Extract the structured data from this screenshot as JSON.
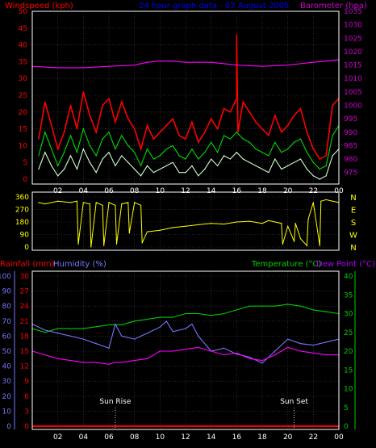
{
  "colors": {
    "background": "#000000",
    "frame": "#ffffff",
    "grid": "#444444",
    "windspeed_axis": "#ff0000",
    "barometer_axis": "#cc00cc",
    "title": "#0000ff",
    "gust": "#ff0000",
    "average": "#00dd00",
    "minimum": "#ccffcc",
    "barometer": "#ff00ff",
    "direction": "#ffff00",
    "rainfall": "#ff0000",
    "humidity_axis": "#7777ff",
    "humidity": "#7777ff",
    "temperature": "#00cc00",
    "dew_point": "#ff00ff",
    "dew_point_label": "#aa00ff"
  },
  "chart_data": [
    {
      "type": "line",
      "title": "24 hour graph data - 07 August 2005",
      "left_axis_label": "Windspeed (kph)",
      "right_axis_label": "Barometer (hpa)",
      "x_ticks": [
        "02",
        "04",
        "06",
        "08",
        "10",
        "12",
        "14",
        "16",
        "18",
        "20",
        "22",
        "00"
      ],
      "left_ticks": [
        "0",
        "5",
        "10",
        "15",
        "20",
        "25",
        "30",
        "35",
        "40",
        "45",
        "50"
      ],
      "right_ticks": [
        "975",
        "980",
        "985",
        "990",
        "995",
        "1000",
        "1005",
        "1010",
        "1015",
        "1020",
        "1025",
        "1030",
        "1035"
      ],
      "x_range": [
        0,
        24
      ],
      "left_range": [
        0,
        50
      ],
      "right_range": [
        972.5,
        1035
      ],
      "grid": true,
      "series": [
        {
          "id": "gust",
          "color_key": "gust",
          "axis": "left",
          "x": [
            0.5,
            1,
            1.5,
            2,
            2.5,
            3,
            3.5,
            4,
            4.5,
            5,
            5.5,
            6,
            6.5,
            7,
            7.5,
            8,
            8.5,
            9,
            9.5,
            10,
            10.5,
            11,
            11.5,
            12,
            12.5,
            13,
            13.5,
            14,
            14.5,
            15,
            15.5,
            16,
            16,
            16.1,
            16.5,
            17,
            17.5,
            18,
            18.5,
            19,
            19.5,
            20,
            20.5,
            21,
            21.5,
            22,
            22.5,
            23,
            23.5,
            24
          ],
          "y": [
            12,
            23,
            16,
            9,
            14,
            22,
            15,
            26,
            19,
            14,
            22,
            24,
            17,
            23,
            18,
            15,
            9,
            16,
            12,
            14,
            16,
            18,
            13,
            12,
            17,
            11,
            14,
            18,
            15,
            21,
            20,
            24,
            43,
            14,
            23,
            20,
            17,
            15,
            13,
            19,
            14,
            16,
            19,
            21,
            14,
            9,
            6,
            7,
            22,
            24
          ]
        },
        {
          "id": "average",
          "color_key": "average",
          "axis": "left",
          "x": [
            0.5,
            1,
            1.5,
            2,
            2.5,
            3,
            3.5,
            4,
            4.5,
            5,
            5.5,
            6,
            6.5,
            7,
            7.5,
            8,
            8.5,
            9,
            9.5,
            10,
            10.5,
            11,
            11.5,
            12,
            12.5,
            13,
            13.5,
            14,
            14.5,
            15,
            15.5,
            16,
            16.5,
            17,
            17.5,
            18,
            18.5,
            19,
            19.5,
            20,
            20.5,
            21,
            21.5,
            22,
            22.5,
            23,
            23.5,
            24
          ],
          "y": [
            7,
            14,
            9,
            4,
            8,
            13,
            8,
            15,
            10,
            7,
            12,
            14,
            9,
            13,
            10,
            8,
            4,
            9,
            6,
            7,
            9,
            10,
            7,
            6,
            9,
            6,
            8,
            11,
            8,
            13,
            12,
            14,
            12,
            11,
            9,
            8,
            7,
            11,
            8,
            9,
            11,
            12,
            8,
            5,
            3,
            4,
            13,
            16
          ]
        },
        {
          "id": "minimum",
          "color_key": "minimum",
          "axis": "left",
          "x": [
            0.5,
            1,
            1.5,
            2,
            2.5,
            3,
            3.5,
            4,
            4.5,
            5,
            5.5,
            6,
            6.5,
            7,
            7.5,
            8,
            8.5,
            9,
            9.5,
            10,
            10.5,
            11,
            11.5,
            12,
            12.5,
            13,
            13.5,
            14,
            14.5,
            15,
            15.5,
            16,
            16.5,
            17,
            17.5,
            18,
            18.5,
            19,
            19.5,
            20,
            20.5,
            21,
            21.5,
            22,
            22.5,
            23,
            23.5,
            24
          ],
          "y": [
            3,
            8,
            4,
            1,
            3,
            7,
            3,
            9,
            5,
            2,
            6,
            8,
            4,
            7,
            5,
            3,
            1,
            4,
            2,
            3,
            4,
            5,
            2,
            2,
            4,
            1,
            3,
            6,
            4,
            7,
            6,
            8,
            6,
            5,
            4,
            3,
            2,
            6,
            3,
            4,
            5,
            6,
            3,
            1,
            0,
            1,
            7,
            9
          ]
        },
        {
          "id": "barometer",
          "color_key": "barometer",
          "axis": "right",
          "x": [
            0,
            2,
            4,
            6,
            8,
            9,
            10,
            11,
            12,
            13,
            14,
            16,
            18,
            20,
            22,
            23,
            24
          ],
          "y": [
            1014.5,
            1014,
            1014,
            1014.5,
            1015,
            1016,
            1016.5,
            1016.5,
            1016,
            1016,
            1016,
            1015,
            1014.5,
            1015,
            1016,
            1016.5,
            1017
          ]
        }
      ]
    },
    {
      "type": "line",
      "title": "",
      "x_ticks": [
        "02",
        "04",
        "06",
        "08",
        "10",
        "12",
        "14",
        "16",
        "18",
        "20",
        "22",
        "00"
      ],
      "left_ticks": [
        "0",
        "90",
        "180",
        "270",
        "360"
      ],
      "right_ticks": [
        "N",
        "W",
        "S",
        "E",
        "N"
      ],
      "x_range": [
        0,
        24
      ],
      "y_range": [
        0,
        360
      ],
      "grid": true,
      "series": [
        {
          "id": "direction",
          "color_key": "direction",
          "x": [
            0.5,
            1,
            2,
            3,
            3.5,
            3.6,
            4,
            4.5,
            4.6,
            5,
            5.5,
            5.6,
            6,
            6.5,
            6.6,
            7,
            7.5,
            7.6,
            8,
            8.5,
            8.6,
            9,
            10,
            11,
            12,
            13,
            14,
            15,
            16,
            17,
            18,
            18.5,
            19,
            19.5,
            19.6,
            20,
            20.5,
            20.6,
            21,
            21.5,
            21.6,
            22,
            22.5,
            22.6,
            23,
            23.5,
            24
          ],
          "y": [
            320,
            310,
            330,
            320,
            330,
            20,
            320,
            310,
            0,
            320,
            300,
            10,
            320,
            300,
            20,
            310,
            320,
            100,
            320,
            300,
            30,
            110,
            120,
            140,
            150,
            160,
            170,
            165,
            180,
            185,
            170,
            190,
            180,
            170,
            20,
            150,
            40,
            170,
            60,
            10,
            200,
            320,
            10,
            330,
            340,
            330,
            320
          ]
        }
      ]
    },
    {
      "type": "line",
      "title": "",
      "left_axis_label": "Rainfall (mm)",
      "left2_axis_label": "Humidity (%)",
      "right_axis_label": "Temperature (°C)",
      "right2_axis_label": "Dew Point (°C)",
      "x_ticks": [
        "02",
        "04",
        "06",
        "08",
        "10",
        "12",
        "14",
        "16",
        "18",
        "20",
        "22",
        "00"
      ],
      "humidity_ticks": [
        "0",
        "10",
        "20",
        "30",
        "40",
        "50",
        "60",
        "70",
        "80",
        "90",
        "100"
      ],
      "rainfall_ticks": [
        "0",
        "3",
        "6",
        "9",
        "12",
        "15",
        "18",
        "21",
        "24",
        "27",
        "30"
      ],
      "temperature_ticks": [
        "0",
        "5",
        "10",
        "15",
        "20",
        "25",
        "30",
        "35",
        "40"
      ],
      "x_range": [
        0,
        24
      ],
      "humidity_range": [
        0,
        100
      ],
      "temperature_range": [
        0,
        40
      ],
      "grid": true,
      "annotations": [
        {
          "text": "Sun Rise",
          "x": 6.5
        },
        {
          "text": "Sun Set",
          "x": 20.5
        }
      ],
      "series": [
        {
          "id": "rainfall",
          "color_key": "rainfall",
          "axis": "rainfall",
          "x": [
            0,
            24
          ],
          "y": [
            0,
            0
          ]
        },
        {
          "id": "temperature",
          "color_key": "temperature",
          "axis": "temperature",
          "x": [
            0,
            1,
            2,
            3,
            4,
            5,
            6,
            7,
            8,
            9,
            10,
            11,
            12,
            13,
            14,
            15,
            16,
            17,
            18,
            19,
            20,
            21,
            22,
            23,
            24
          ],
          "y": [
            26,
            25,
            26,
            26,
            26,
            26.5,
            27,
            27,
            28,
            28.5,
            29,
            29,
            30,
            30,
            29.5,
            30,
            31,
            32,
            32,
            32,
            32.5,
            32,
            31,
            30.5,
            30
          ]
        },
        {
          "id": "humidity",
          "color_key": "humidity",
          "axis": "humidity",
          "x": [
            0,
            1,
            2,
            3,
            4,
            5,
            6,
            6.5,
            7,
            8,
            9,
            10,
            10.5,
            11,
            12,
            12.5,
            13,
            14,
            15,
            16,
            17,
            18,
            19,
            20,
            21,
            22,
            23,
            24
          ],
          "y": [
            68,
            64,
            62,
            60,
            58,
            55,
            52,
            68,
            60,
            58,
            62,
            66,
            70,
            63,
            65,
            68,
            60,
            50,
            52,
            48,
            46,
            42,
            50,
            58,
            55,
            54,
            56,
            58
          ]
        },
        {
          "id": "dew_point",
          "color_key": "dew_point",
          "axis": "temperature",
          "x": [
            0,
            1,
            2,
            3,
            4,
            5,
            6,
            6.5,
            7,
            8,
            9,
            10,
            11,
            12,
            13,
            14,
            15,
            16,
            17,
            18,
            19,
            20,
            21,
            22,
            23,
            24
          ],
          "y": [
            20,
            19,
            18,
            17.5,
            17,
            17,
            16.5,
            17,
            17,
            17.5,
            18,
            20,
            20,
            20.5,
            21,
            20,
            19,
            19.5,
            18,
            17.5,
            19,
            21,
            20,
            19.5,
            19,
            19
          ]
        }
      ]
    }
  ]
}
